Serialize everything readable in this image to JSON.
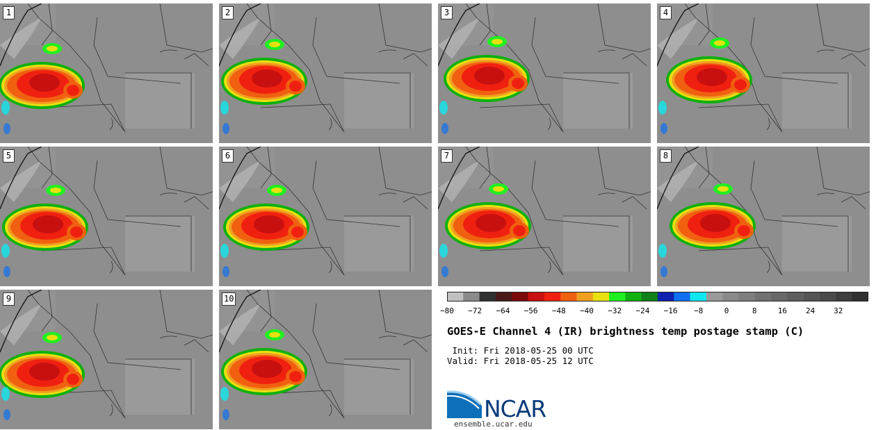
{
  "panels": [
    {
      "label": "1"
    },
    {
      "label": "2"
    },
    {
      "label": "3"
    },
    {
      "label": "4"
    },
    {
      "label": "5"
    },
    {
      "label": "6"
    },
    {
      "label": "7"
    },
    {
      "label": "8"
    },
    {
      "label": "9"
    },
    {
      "label": "10"
    }
  ],
  "colorbar": {
    "ticks": [
      "−80",
      "−72",
      "−64",
      "−56",
      "−48",
      "−40",
      "−32",
      "−24",
      "−16",
      "−8",
      "0",
      "8",
      "16",
      "24",
      "32"
    ],
    "colors": [
      "#c0c0c0",
      "#8a8a8a",
      "#303030",
      "#4a1a1a",
      "#7a0a0a",
      "#c81010",
      "#f02010",
      "#f06010",
      "#f0a020",
      "#e8e010",
      "#20f020",
      "#10b010",
      "#108018",
      "#1020b0",
      "#1070f0",
      "#10e8f0",
      "#9a9a9a",
      "#8a8a8a",
      "#7e7e7e",
      "#727272",
      "#686868",
      "#5e5e5e",
      "#545454",
      "#4a4a4a",
      "#3e3e3e",
      "#303030"
    ]
  },
  "title": "GOES-E Channel 4 (IR) brightness temp postage stamp (C)",
  "init_line": " Init: Fri 2018-05-25 00 UTC",
  "valid_line": "Valid: Fri 2018-05-25 12 UTC",
  "logo": {
    "text": "NCAR",
    "url": "ensemble.ucar.edu"
  }
}
